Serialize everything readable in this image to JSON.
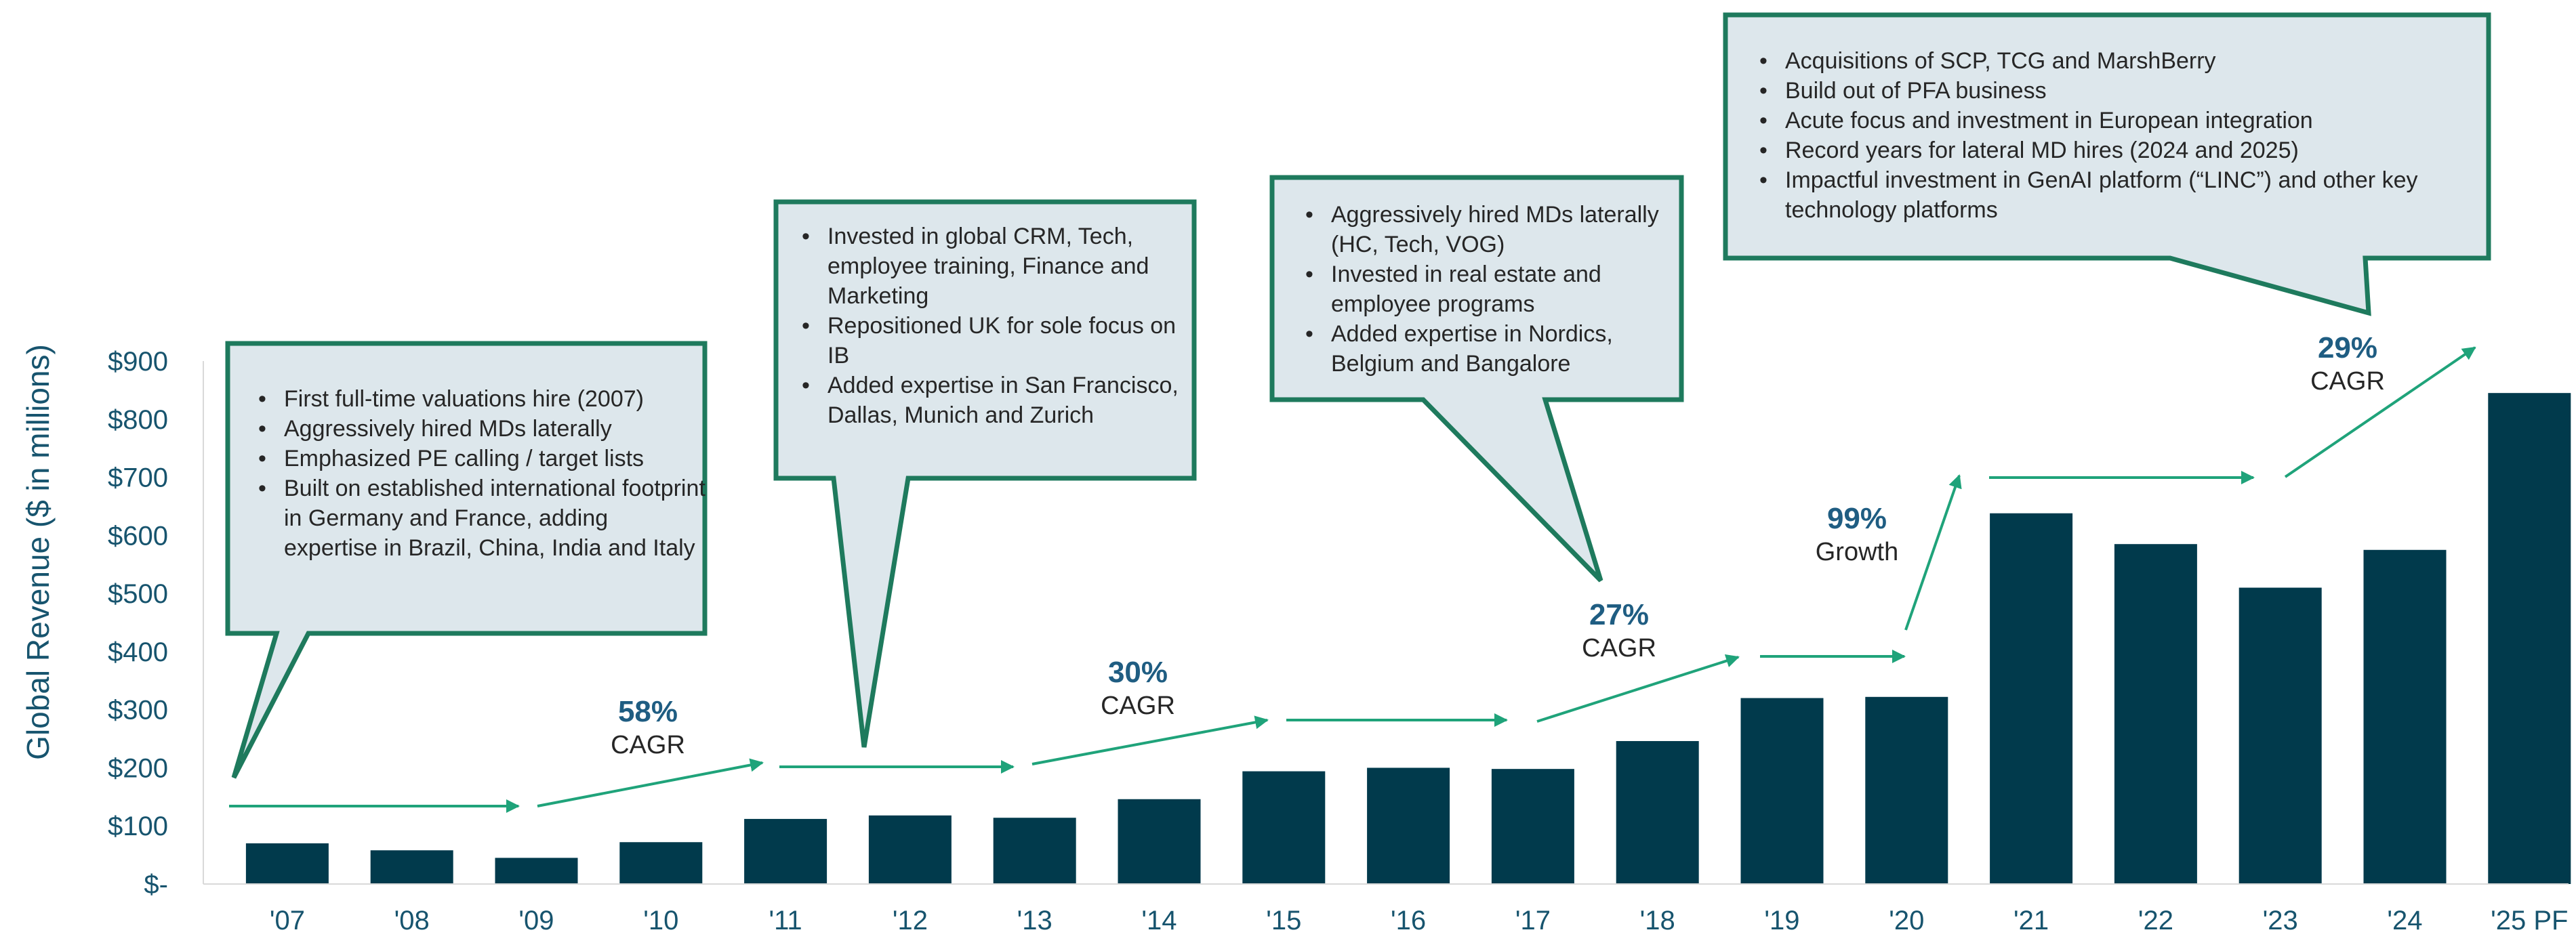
{
  "colors": {
    "bar": "#013a4c",
    "arrow": "#1fa37a",
    "callout_fill": "#dde7ec",
    "callout_border": "#1e7a5d",
    "pct_text": "#1f5d82"
  },
  "chart_data": {
    "type": "bar",
    "ylabel": "Global Revenue ($ in millions)",
    "ylim": [
      0,
      900
    ],
    "yticks": [
      {
        "value": 0,
        "label": "$-"
      },
      {
        "value": 100,
        "label": "$100"
      },
      {
        "value": 200,
        "label": "$200"
      },
      {
        "value": 300,
        "label": "$300"
      },
      {
        "value": 400,
        "label": "$400"
      },
      {
        "value": 500,
        "label": "$500"
      },
      {
        "value": 600,
        "label": "$600"
      },
      {
        "value": 700,
        "label": "$700"
      },
      {
        "value": 800,
        "label": "$800"
      },
      {
        "value": 900,
        "label": "$900"
      }
    ],
    "categories": [
      "'07",
      "'08",
      "'09",
      "'10",
      "'11",
      "'12",
      "'13",
      "'14",
      "'15",
      "'16",
      "'17",
      "'18",
      "'19",
      "'20",
      "'21",
      "'22",
      "'23",
      "'24",
      "'25 PF"
    ],
    "values": [
      70,
      58,
      45,
      72,
      112,
      118,
      114,
      146,
      194,
      200,
      198,
      246,
      320,
      322,
      638,
      585,
      510,
      575,
      845
    ],
    "growth_labels": [
      {
        "pct": "58%",
        "label": "CAGR"
      },
      {
        "pct": "30%",
        "label": "CAGR"
      },
      {
        "pct": "27%",
        "label": "CAGR"
      },
      {
        "pct": "99%",
        "label": "Growth"
      },
      {
        "pct": "29%",
        "label": "CAGR"
      }
    ]
  },
  "callouts": [
    {
      "items": [
        "First full-time valuations hire (2007)",
        "Aggressively hired MDs laterally",
        "Emphasized PE calling / target lists",
        "Built on established international footprint in Germany and France, adding expertise in Brazil, China, India and Italy"
      ]
    },
    {
      "items": [
        "Invested in global CRM, Tech, employee training, Finance and Marketing",
        "Repositioned UK for sole focus on IB",
        "Added expertise in San Francisco, Dallas, Munich and Zurich"
      ]
    },
    {
      "items": [
        "Aggressively hired MDs laterally (HC, Tech, VOG)",
        "Invested in real estate and employee programs",
        "Added expertise in Nordics, Belgium and Bangalore"
      ]
    },
    {
      "items": [
        "Acquisitions of SCP, TCG and MarshBerry",
        "Build out of PFA business",
        "Acute focus and investment in European integration",
        "Record years for lateral MD hires (2024 and 2025)",
        "Impactful investment in GenAI platform (“LINC”) and other key technology platforms"
      ]
    }
  ]
}
